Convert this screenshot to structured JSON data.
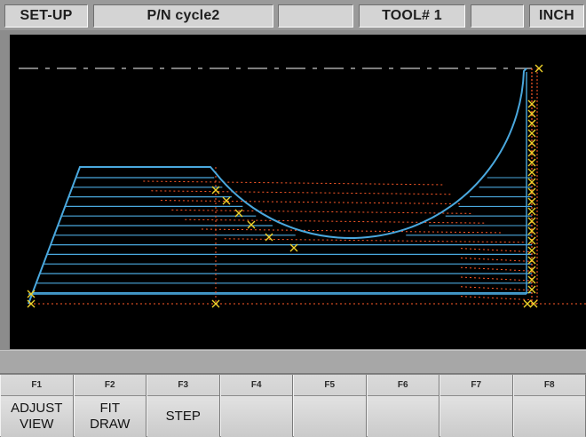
{
  "status": {
    "mode": "SET-UP",
    "part": "P/N cycle2",
    "empty_1": "",
    "tool": "TOOL# 1",
    "empty_2": "",
    "units": "INCH"
  },
  "message": "",
  "colors": {
    "toolpath": "#4aa8de",
    "rapid_move": "#ff5a28",
    "point_marker": "#f0d22a",
    "centerline": "#c8c8c8",
    "screen_bg": "#000000"
  },
  "function_keys": [
    {
      "code": "F1",
      "lines": [
        "ADJUST",
        "VIEW"
      ]
    },
    {
      "code": "F2",
      "lines": [
        "FIT",
        "DRAW"
      ]
    },
    {
      "code": "F3",
      "lines": [
        "STEP"
      ]
    },
    {
      "code": "F4",
      "lines": []
    },
    {
      "code": "F5",
      "lines": []
    },
    {
      "code": "F6",
      "lines": []
    },
    {
      "code": "F7",
      "lines": []
    },
    {
      "code": "F8",
      "lines": []
    }
  ]
}
